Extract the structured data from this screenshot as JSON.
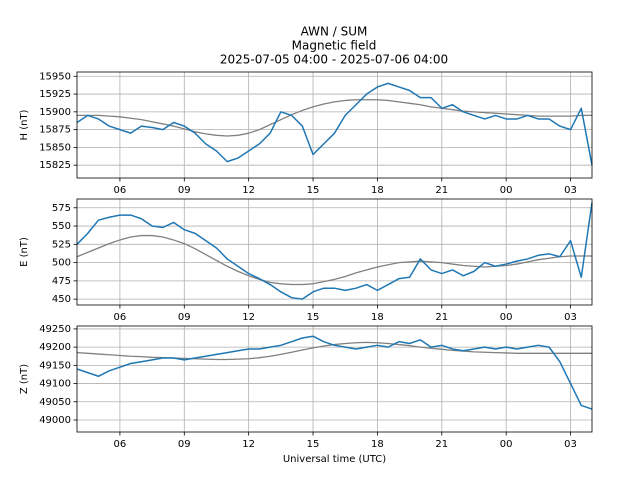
{
  "header": {
    "title": "AWN / SUM",
    "subtitle": "Magnetic field",
    "period": "2025-07-05 04:00 - 2025-07-06 04:00"
  },
  "chart_data": [
    {
      "type": "line",
      "ylabel": "H (nT)",
      "grid": true,
      "x": [
        4,
        4.5,
        5,
        5.5,
        6,
        6.5,
        7,
        7.5,
        8,
        8.5,
        9,
        9.5,
        10,
        10.5,
        11,
        11.5,
        12,
        12.5,
        13,
        13.5,
        14,
        14.5,
        15,
        15.5,
        16,
        16.5,
        17,
        17.5,
        18,
        18.5,
        19,
        19.5,
        20,
        20.5,
        21,
        21.5,
        22,
        22.5,
        23,
        23.5,
        24,
        24.5,
        25,
        25.5,
        26,
        26.5,
        27,
        27.5,
        28
      ],
      "xlim": [
        4,
        28
      ],
      "xticks": [
        {
          "value": 6,
          "label": "06"
        },
        {
          "value": 9,
          "label": "09"
        },
        12,
        15,
        18,
        21,
        {
          "value": 24,
          "label": "00"
        },
        {
          "value": 27,
          "label": "03"
        }
      ],
      "ylim": [
        15807,
        15956
      ],
      "yticks": [
        15825,
        15850,
        15875,
        15900,
        15925,
        15950
      ],
      "series": [
        {
          "color": "#808080",
          "values": [
            15895,
            15895,
            15895,
            15894,
            15893,
            15891,
            15889,
            15886,
            15883,
            15880,
            15876,
            15872,
            15869,
            15867,
            15866,
            15867,
            15870,
            15875,
            15882,
            15889,
            15896,
            15902,
            15907,
            15911,
            15914,
            15916,
            15917,
            15917,
            15917,
            15916,
            15914,
            15912,
            15910,
            15907,
            15905,
            15903,
            15901,
            15900,
            15899,
            15898,
            15897,
            15896,
            15895,
            15894,
            15894,
            15894,
            15894,
            15895,
            15895
          ]
        },
        {
          "color": "#1f77b4",
          "values": [
            15885,
            15895,
            15890,
            15880,
            15875,
            15870,
            15880,
            15878,
            15875,
            15885,
            15880,
            15870,
            15855,
            15845,
            15830,
            15835,
            15845,
            15855,
            15870,
            15900,
            15895,
            15880,
            15840,
            15855,
            15870,
            15895,
            15910,
            15925,
            15935,
            15940,
            15935,
            15930,
            15920,
            15920,
            15905,
            15910,
            15900,
            15895,
            15890,
            15895,
            15890,
            15890,
            15895,
            15890,
            15890,
            15880,
            15875,
            15905,
            15825
          ]
        }
      ]
    },
    {
      "type": "line",
      "ylabel": "E (nT)",
      "grid": true,
      "x": [
        4,
        4.5,
        5,
        5.5,
        6,
        6.5,
        7,
        7.5,
        8,
        8.5,
        9,
        9.5,
        10,
        10.5,
        11,
        11.5,
        12,
        12.5,
        13,
        13.5,
        14,
        14.5,
        15,
        15.5,
        16,
        16.5,
        17,
        17.5,
        18,
        18.5,
        19,
        19.5,
        20,
        20.5,
        21,
        21.5,
        22,
        22.5,
        23,
        23.5,
        24,
        24.5,
        25,
        25.5,
        26,
        26.5,
        27,
        27.5,
        28
      ],
      "xlim": [
        4,
        28
      ],
      "xticks": [
        {
          "value": 6,
          "label": "06"
        },
        {
          "value": 9,
          "label": "09"
        },
        12,
        15,
        18,
        21,
        {
          "value": 24,
          "label": "00"
        },
        {
          "value": 27,
          "label": "03"
        }
      ],
      "ylim": [
        442,
        587
      ],
      "yticks": [
        450,
        475,
        500,
        525,
        550,
        575
      ],
      "series": [
        {
          "color": "#808080",
          "values": [
            508,
            514,
            520,
            526,
            531,
            535,
            537,
            537,
            535,
            531,
            526,
            519,
            511,
            503,
            495,
            488,
            482,
            477,
            473,
            471,
            470,
            470,
            471,
            474,
            477,
            481,
            486,
            490,
            494,
            497,
            500,
            501,
            502,
            501,
            500,
            498,
            496,
            495,
            494,
            495,
            496,
            498,
            501,
            504,
            506,
            508,
            509,
            509,
            509
          ]
        },
        {
          "color": "#1f77b4",
          "values": [
            525,
            540,
            558,
            562,
            565,
            565,
            560,
            550,
            548,
            555,
            545,
            540,
            530,
            520,
            505,
            495,
            485,
            478,
            470,
            460,
            452,
            450,
            460,
            465,
            465,
            462,
            465,
            470,
            462,
            470,
            478,
            480,
            505,
            490,
            485,
            490,
            482,
            488,
            500,
            495,
            498,
            502,
            505,
            510,
            512,
            508,
            530,
            480,
            582
          ]
        }
      ]
    },
    {
      "type": "line",
      "ylabel": "Z (nT)",
      "xlabel": "Universal time (UTC)",
      "grid": true,
      "x": [
        4,
        4.5,
        5,
        5.5,
        6,
        6.5,
        7,
        7.5,
        8,
        8.5,
        9,
        9.5,
        10,
        10.5,
        11,
        11.5,
        12,
        12.5,
        13,
        13.5,
        14,
        14.5,
        15,
        15.5,
        16,
        16.5,
        17,
        17.5,
        18,
        18.5,
        19,
        19.5,
        20,
        20.5,
        21,
        21.5,
        22,
        22.5,
        23,
        23.5,
        24,
        24.5,
        25,
        25.5,
        26,
        26.5,
        27,
        27.5,
        28
      ],
      "xlim": [
        4,
        28
      ],
      "xticks": [
        {
          "value": 6,
          "label": "06"
        },
        {
          "value": 9,
          "label": "09"
        },
        12,
        15,
        18,
        21,
        {
          "value": 24,
          "label": "00"
        },
        {
          "value": 27,
          "label": "03"
        }
      ],
      "ylim": [
        48967,
        49258
      ],
      "yticks": [
        49000,
        49050,
        49100,
        49150,
        49200,
        49250
      ],
      "series": [
        {
          "color": "#808080",
          "values": [
            49185,
            49183,
            49181,
            49179,
            49177,
            49175,
            49174,
            49172,
            49171,
            49170,
            49169,
            49168,
            49167,
            49166,
            49166,
            49167,
            49168,
            49171,
            49175,
            49180,
            49186,
            49192,
            49198,
            49203,
            49207,
            49210,
            49212,
            49213,
            49212,
            49210,
            49207,
            49204,
            49200,
            49197,
            49194,
            49191,
            49189,
            49187,
            49186,
            49185,
            49184,
            49183,
            49183,
            49183,
            49183,
            49183,
            49183,
            49183,
            49183
          ]
        },
        {
          "color": "#1f77b4",
          "values": [
            49140,
            49130,
            49120,
            49135,
            49145,
            49155,
            49160,
            49165,
            49170,
            49170,
            49165,
            49170,
            49175,
            49180,
            49185,
            49190,
            49195,
            49195,
            49200,
            49205,
            49215,
            49225,
            49230,
            49215,
            49205,
            49200,
            49195,
            49200,
            49205,
            49200,
            49215,
            49210,
            49220,
            49200,
            49205,
            49195,
            49190,
            49195,
            49200,
            49195,
            49200,
            49195,
            49200,
            49205,
            49200,
            49160,
            49100,
            49040,
            49030
          ]
        }
      ]
    }
  ]
}
